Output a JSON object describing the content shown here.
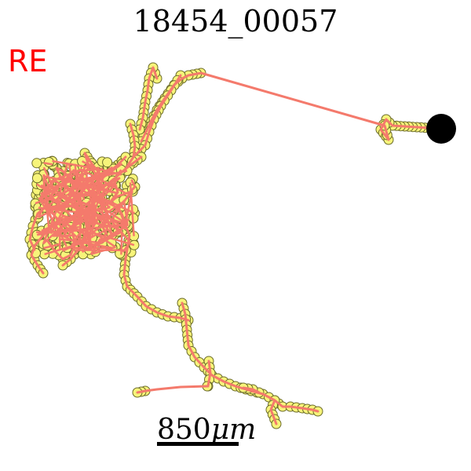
{
  "title": "18454_00057",
  "corner_label": "RE",
  "scale_bar": {
    "value": "850",
    "unit": "μm"
  },
  "colors": {
    "trace": "#f47a6c",
    "node_fill": "#f7f47a",
    "node_stroke": "#6b6b2a",
    "soma": "#000000",
    "label": "#ff0000"
  }
}
